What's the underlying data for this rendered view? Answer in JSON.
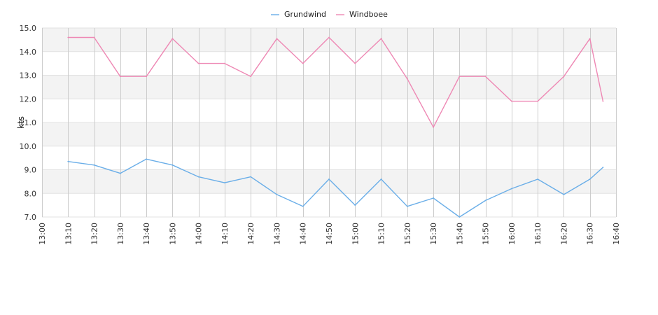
{
  "chart_data": {
    "type": "line",
    "title": "",
    "xlabel": "",
    "ylabel": "kts",
    "ylim": [
      7.0,
      15.0
    ],
    "yticks": [
      "7.0",
      "8.0",
      "9.0",
      "10.0",
      "11.0",
      "12.0",
      "13.0",
      "14.0",
      "15.0"
    ],
    "xticks": [
      "13:00",
      "13:10",
      "13:20",
      "13:30",
      "13:40",
      "13:50",
      "14:00",
      "14:10",
      "14:20",
      "14:30",
      "14:40",
      "14:50",
      "15:00",
      "15:10",
      "15:20",
      "15:30",
      "15:40",
      "15:50",
      "16:00",
      "16:10",
      "16:20",
      "16:30",
      "16:40"
    ],
    "xlim": [
      "13:00",
      "16:40"
    ],
    "grid": "vertical lines and alternating horizontal bands",
    "legend_position": "top-center",
    "x": [
      "13:10",
      "13:20",
      "13:30",
      "13:40",
      "13:50",
      "14:00",
      "14:10",
      "14:20",
      "14:30",
      "14:40",
      "14:50",
      "15:00",
      "15:10",
      "15:20",
      "15:30",
      "15:40",
      "15:50",
      "16:00",
      "16:10",
      "16:20",
      "16:30",
      "16:35"
    ],
    "series": [
      {
        "name": "Grundwind",
        "color": "#6aaee8",
        "values": [
          9.35,
          9.2,
          8.85,
          9.45,
          9.2,
          8.7,
          8.45,
          8.7,
          7.95,
          7.45,
          8.6,
          7.5,
          8.6,
          7.45,
          7.8,
          7.0,
          7.7,
          8.2,
          8.6,
          7.95,
          8.6,
          9.1
        ]
      },
      {
        "name": "Windboee",
        "color": "#ee88b4",
        "values": [
          14.6,
          14.6,
          12.95,
          12.95,
          14.55,
          13.5,
          13.5,
          12.95,
          14.55,
          13.5,
          14.6,
          13.5,
          14.55,
          12.85,
          10.8,
          12.95,
          12.95,
          11.9,
          11.9,
          12.95,
          14.55,
          11.9
        ]
      }
    ]
  }
}
